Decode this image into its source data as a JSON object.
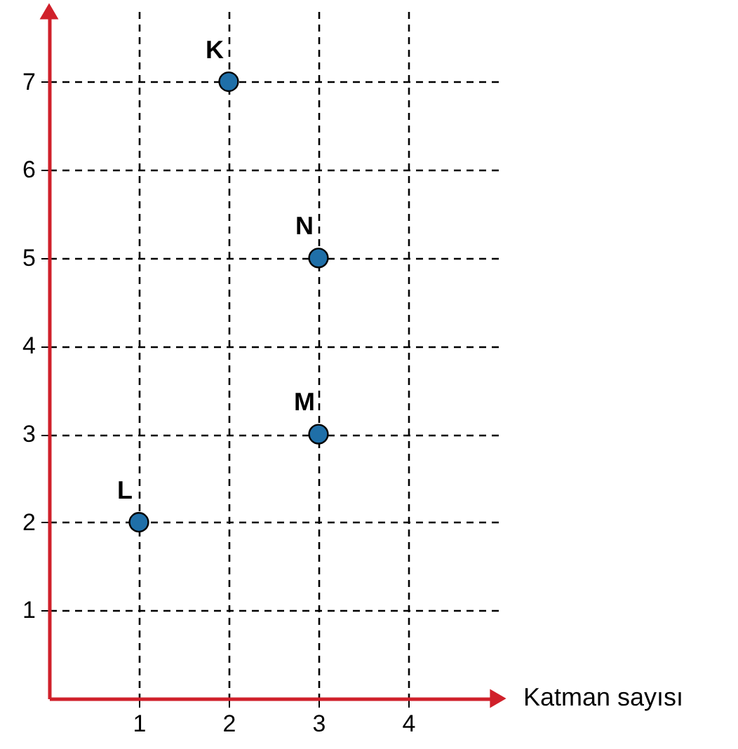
{
  "chart_data": {
    "type": "scatter",
    "xlabel": "Katman sayısı",
    "x": [
      2,
      1,
      3,
      3
    ],
    "series": [
      {
        "color": "#1f6fa8",
        "values": [
          7,
          2,
          3,
          5
        ]
      }
    ],
    "annotations": [
      {
        "text": "K",
        "x": 2,
        "y": 7
      },
      {
        "text": "L",
        "x": 1,
        "y": 2
      },
      {
        "text": "M",
        "x": 3,
        "y": 3
      },
      {
        "text": "N",
        "x": 3,
        "y": 5
      }
    ],
    "xlim": [
      0,
      5
    ],
    "ylim": [
      0,
      7.8
    ],
    "xticks": [
      1,
      2,
      3,
      4
    ],
    "yticks": [
      1,
      2,
      3,
      4,
      5,
      6,
      7
    ],
    "grid": true,
    "marker": "circle"
  }
}
